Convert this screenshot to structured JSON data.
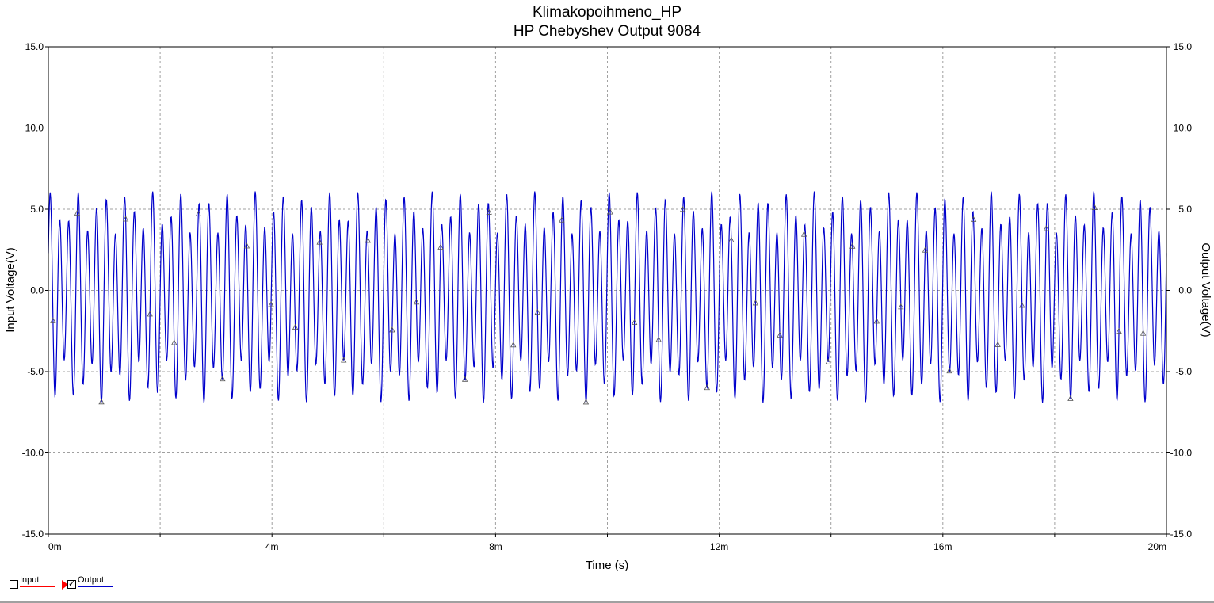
{
  "chart_data": {
    "type": "line",
    "title": "Klimakopoihmeno_HP",
    "subtitle": "HP Chebyshev Output 9084",
    "xlabel": "Time (s)",
    "ylabel_left": "Input Voltage(V)",
    "ylabel_right": "Output Voltage(V)",
    "xlim": [
      0,
      0.02
    ],
    "ylim": [
      -15,
      15
    ],
    "x_ticks": [
      "0m",
      "4m",
      "8m",
      "12m",
      "16m",
      "20m"
    ],
    "y_ticks": [
      "15.0",
      "10.0",
      "5.0",
      "0.0",
      "-5.0",
      "-10.0",
      "-15.0"
    ],
    "grid": true,
    "series": [
      {
        "name": "Input",
        "color": "#ff0000",
        "visible": false,
        "description_values": []
      },
      {
        "name": "Output",
        "color": "#0000cc",
        "visible": true,
        "signal": {
          "carrier_hz": 6000,
          "carrier_amplitude_v": 5.2,
          "tone2_hz": 3800,
          "tone2_amplitude_v": 1.3,
          "dc_offset_v": -0.4,
          "peak_max_v": 5.8,
          "peak_min_v": -6.7
        }
      }
    ],
    "legend_position": "bottom-left"
  },
  "legend": {
    "input_label": "Input",
    "output_label": "Output",
    "input_checked": false,
    "output_checked": true,
    "check_mark": "✓"
  }
}
